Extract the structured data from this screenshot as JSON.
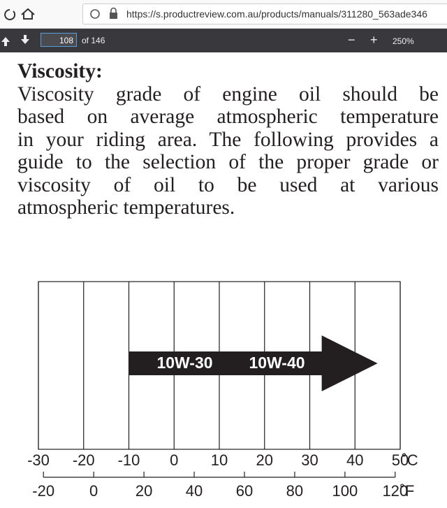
{
  "browser": {
    "url": "https://s.productreview.com.au/products/manuals/311280_563ade346",
    "page": "108",
    "page_total": "of 146",
    "zoom": "250%"
  },
  "document": {
    "heading": "Viscosity:",
    "lines": [
      "Viscosity grade of engine oil should be",
      "based on average atmospheric temperature",
      "in your riding area. The following provides a",
      "guide to the selection of the proper grade or",
      "viscosity of oil to be used at various",
      "atmospheric temperatures."
    ]
  },
  "chart_data": {
    "type": "range-arrow",
    "xlim": [
      -30,
      50
    ],
    "xticks": [
      -30,
      -20,
      -10,
      0,
      10,
      20,
      30,
      40,
      50
    ],
    "x_unit": "˚C",
    "x2lim": [
      -22,
      122
    ],
    "x2ticks": [
      -20,
      0,
      20,
      40,
      60,
      80,
      100,
      120
    ],
    "x2_unit": "˚F",
    "grid": true,
    "bars": [
      {
        "labels": [
          "10W-30",
          "10W-40"
        ],
        "start": -10,
        "end": 45,
        "color": "#231f20"
      }
    ]
  }
}
